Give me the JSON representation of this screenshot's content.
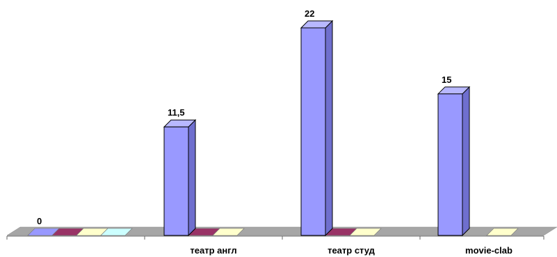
{
  "chart_data": {
    "type": "bar",
    "style": "3d-column",
    "categories": [
      "",
      "театр англ",
      "театр студ",
      "movie-clab"
    ],
    "values": [
      0,
      11.5,
      22,
      15
    ],
    "data_labels": [
      "0",
      "11,5",
      "22",
      "15"
    ],
    "ylim": [
      0,
      22
    ],
    "grid": false,
    "legend": "none",
    "title": "",
    "xlabel": "",
    "ylabel": "",
    "colors": {
      "bar": "#9999ff",
      "bar_side": "#6f6fce",
      "bar_top": "#b8b8ff",
      "floor": "#a6a6a6",
      "flat_markers": [
        "#9999ff",
        "#993366",
        "#ffffcc",
        "#ccffff"
      ]
    }
  }
}
